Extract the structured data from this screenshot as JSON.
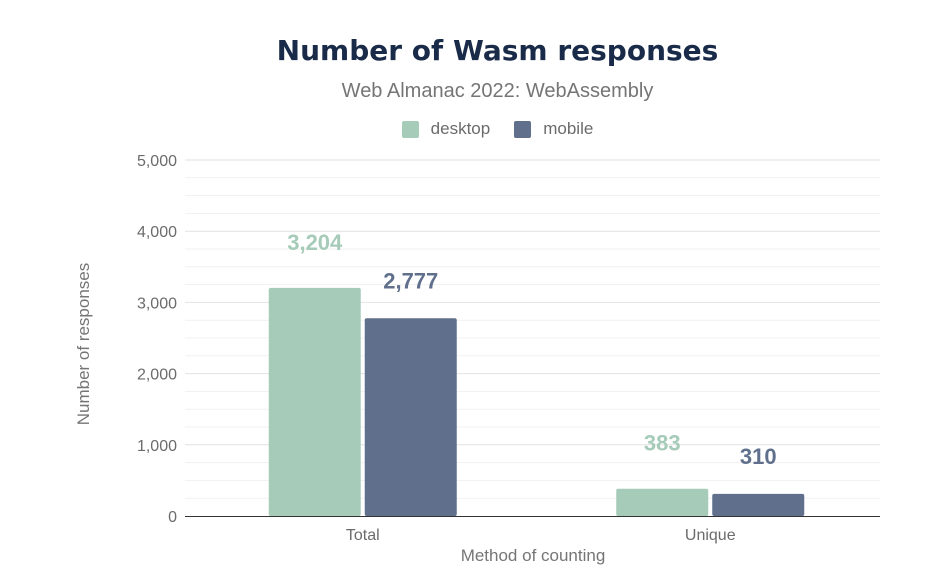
{
  "chart_data": {
    "type": "bar",
    "title": "Number of Wasm responses",
    "subtitle": "Web Almanac 2022: WebAssembly",
    "xlabel": "Method of counting",
    "ylabel": "Number of responses",
    "categories": [
      "Total",
      "Unique"
    ],
    "series": [
      {
        "name": "desktop",
        "values": [
          3204,
          383
        ],
        "value_labels": [
          "3,204",
          "383"
        ],
        "color": "#a6cbb9"
      },
      {
        "name": "mobile",
        "values": [
          2777,
          310
        ],
        "value_labels": [
          "2,777",
          "310"
        ],
        "color": "#5f6f8c"
      }
    ],
    "ylim": [
      0,
      5000
    ],
    "yticks": [
      0,
      1000,
      2000,
      3000,
      4000,
      5000
    ],
    "ytick_labels": [
      "0",
      "1,000",
      "2,000",
      "3,000",
      "4,000",
      "5,000"
    ],
    "grid": true,
    "legend_position": "top-center"
  }
}
